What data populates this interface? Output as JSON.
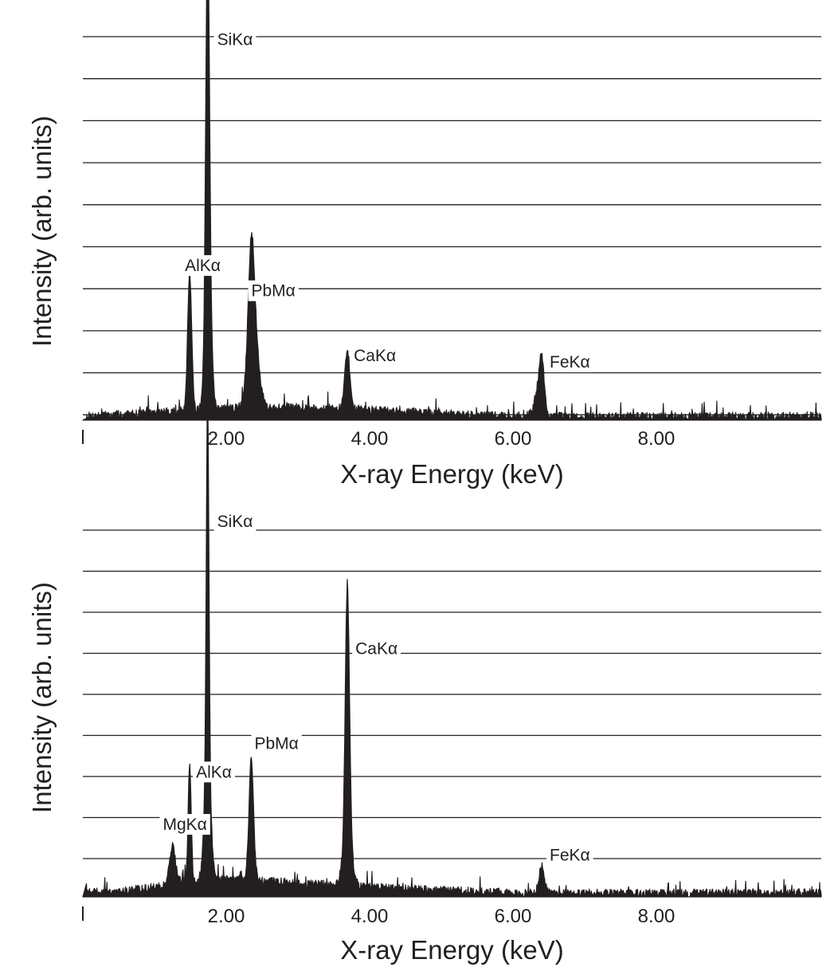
{
  "chart_data": [
    {
      "type": "area",
      "xlabel": "X-ray Energy (keV)",
      "ylabel": "Intensity (arb. units)",
      "xlim": [
        0,
        10.3
      ],
      "ylim": [
        0,
        10
      ],
      "xticks": [
        "2.00",
        "4.00",
        "6.00",
        "8.00"
      ],
      "grid": true,
      "peaks": [
        {
          "label": "SiKα",
          "x": 1.74,
          "y": 9.5,
          "width": 0.035
        },
        {
          "label": "AlKα",
          "x": 1.49,
          "y": 3.6,
          "width": 0.04
        },
        {
          "label": "PbMα",
          "x": 2.35,
          "y": 2.9,
          "width": 0.06
        },
        {
          "label": "CaKα",
          "x": 3.69,
          "y": 1.5,
          "width": 0.05
        },
        {
          "label": "FeKα",
          "x": 6.4,
          "y": 1.25,
          "width": 0.05
        }
      ],
      "extra_components": [
        {
          "x": 1.75,
          "y": 3.3,
          "width": 0.06
        },
        {
          "x": 2.38,
          "y": 1.8,
          "width": 0.1
        },
        {
          "x": 6.35,
          "y": 0.5,
          "width": 0.08
        }
      ]
    },
    {
      "type": "area",
      "xlabel": "X-ray Energy (keV)",
      "ylabel": "Intensity (arb. units)",
      "xlim": [
        0,
        10.3
      ],
      "ylim": [
        0,
        9.5
      ],
      "xticks": [
        "2.00",
        "4.00",
        "6.00",
        "8.00"
      ],
      "grid": true,
      "peaks": [
        {
          "label": "SiKα",
          "x": 1.74,
          "y": 9.3,
          "width": 0.025
        },
        {
          "label": "CaKα",
          "x": 3.69,
          "y": 6.3,
          "width": 0.04
        },
        {
          "label": "AlKα",
          "x": 1.49,
          "y": 3.1,
          "width": 0.03
        },
        {
          "label": "PbMα",
          "x": 2.35,
          "y": 3.1,
          "width": 0.045
        },
        {
          "label": "MgKα",
          "x": 1.25,
          "y": 1.0,
          "width": 0.06
        },
        {
          "label": "FeKα",
          "x": 6.4,
          "y": 0.7,
          "width": 0.05
        }
      ],
      "extra_components": [
        {
          "x": 1.74,
          "y": 3.3,
          "width": 0.06
        },
        {
          "x": 3.69,
          "y": 1.5,
          "width": 0.08
        }
      ]
    }
  ]
}
